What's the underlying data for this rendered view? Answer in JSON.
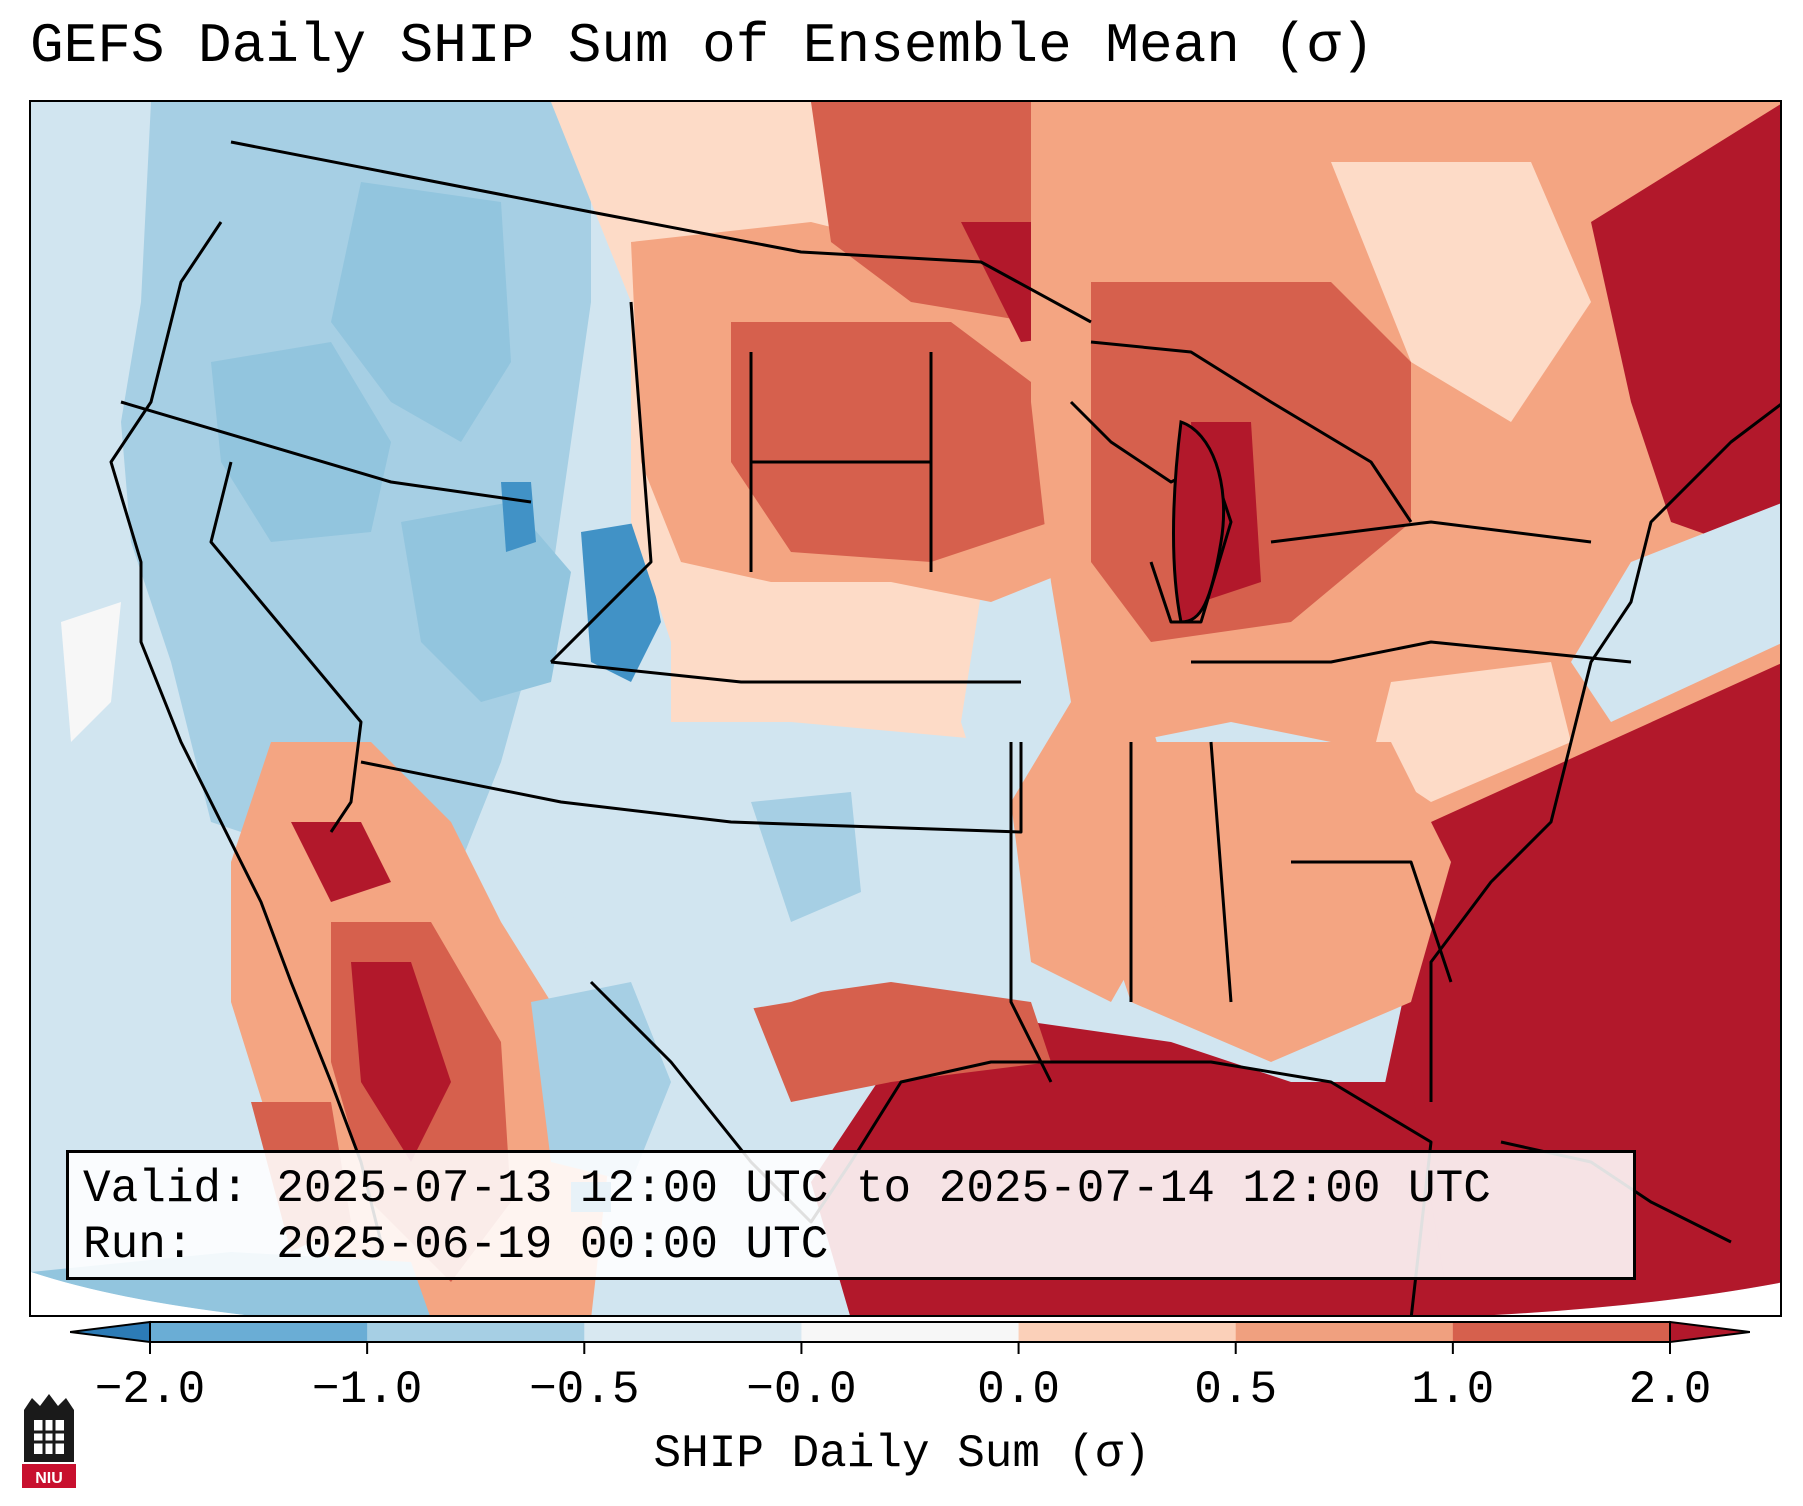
{
  "title": "GEFS Daily SHIP Sum of Ensemble Mean (σ)",
  "info": {
    "valid_label": "Valid:",
    "valid_value": "2025-07-13 12:00 UTC to 2025-07-14 12:00 UTC",
    "run_label": "Run:",
    "run_value": "2025-06-19 00:00 UTC"
  },
  "colorbar": {
    "label": "SHIP Daily Sum (σ)",
    "ticks": [
      "−2.0",
      "−1.0",
      "−0.5",
      "−0.0",
      "0.0",
      "0.5",
      "1.0",
      "2.0"
    ],
    "colors": [
      "#2c7bb6",
      "#6aadd5",
      "#a6cfe4",
      "#d8e8f1",
      "#f7f7f7",
      "#fbd0b9",
      "#f0a07f",
      "#d6604d",
      "#b2182b"
    ],
    "extend": "both"
  },
  "logo": {
    "text": "NIU",
    "color": "#c8102e"
  },
  "map": {
    "region": "Contiguous United States",
    "field_colors": {
      "strong_negative": "#4192c6",
      "negative": "#92c5de",
      "weak_negative": "#d1e5f0",
      "weak_positive": "#fddbc7",
      "positive": "#f4a582",
      "strong_positive": "#d6604d",
      "extreme_positive": "#b2182b"
    }
  }
}
